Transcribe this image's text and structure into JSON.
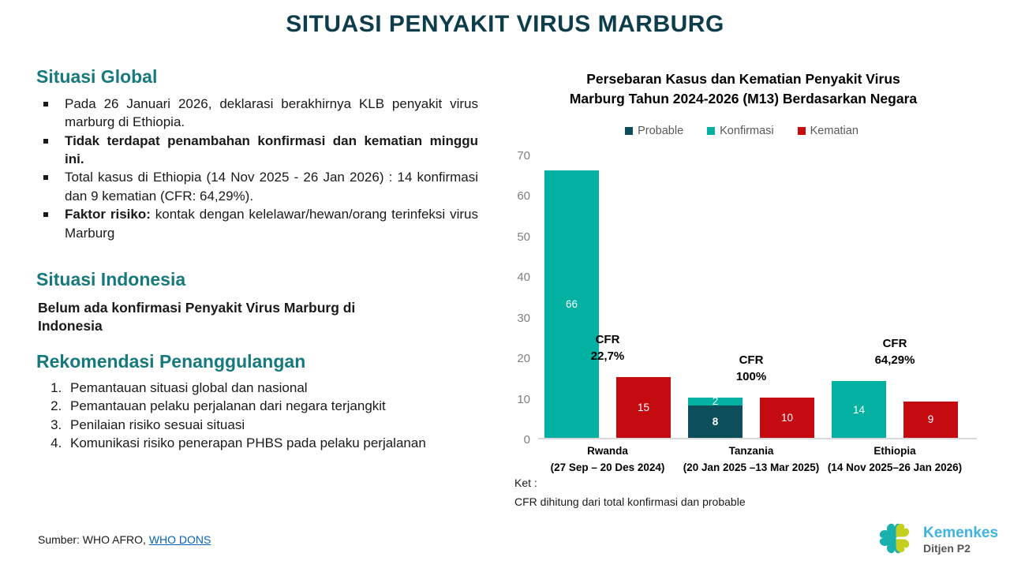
{
  "title": "SITUASI PENYAKIT VIRUS MARBURG",
  "global_section": {
    "heading": "Situasi Global",
    "bullets": [
      {
        "bold": "",
        "text": "Pada 26 Januari 2026, deklarasi berakhirnya KLB penyakit virus marburg di Ethiopia."
      },
      {
        "bold": "Tidak terdapat penambahan konfirmasi dan kematian minggu ini.",
        "text": ""
      },
      {
        "bold": "",
        "text": "Total kasus di Ethiopia (14 Nov 2025 - 26 Jan 2026) : 14 konfirmasi dan 9 kematian (CFR: 64,29%)."
      },
      {
        "bold": "Faktor risiko:",
        "text": " kontak dengan kelelawar/hewan/orang terinfeksi virus Marburg"
      }
    ]
  },
  "indonesia_section": {
    "heading": "Situasi Indonesia",
    "text": "Belum ada konfirmasi Penyakit Virus Marburg di Indonesia"
  },
  "recommendation_section": {
    "heading": "Rekomendasi Penanggulangan",
    "items": [
      "Pemantauan situasi global dan nasional",
      "Pemantauan pelaku perjalanan dari negara terjangkit",
      "Penilaian risiko sesuai situasi",
      "Komunikasi risiko penerapan PHBS pada pelaku perjalanan"
    ]
  },
  "chart_data": {
    "type": "bar",
    "title": "Persebaran Kasus dan Kematian Penyakit Virus Marburg Tahun 2024-2026 (M13) Berdasarkan Negara",
    "legend_position": "top",
    "grid": false,
    "ylim": [
      0,
      70
    ],
    "yticks": [
      0,
      10,
      20,
      30,
      40,
      50,
      60,
      70
    ],
    "series_colors": {
      "Probable": "#0d4e5b",
      "Konfirmasi": "#02b1a2",
      "Kematian": "#c40b10"
    },
    "legend": [
      {
        "label": "Probable",
        "color": "#0d4e5b"
      },
      {
        "label": "Konfirmasi",
        "color": "#02b1a2"
      },
      {
        "label": "Kematian",
        "color": "#c40b10"
      }
    ],
    "groups": [
      {
        "country": "Rwanda",
        "period": "(27 Sep – 20 Des 2024)",
        "cases": {
          "probable": 0,
          "konfirmasi": 66
        },
        "kematian": 15,
        "cfr": [
          "CFR",
          "22,7%"
        ]
      },
      {
        "country": "Tanzania",
        "period": "(20 Jan 2025 –13 Mar 2025)",
        "cases": {
          "probable": 8,
          "konfirmasi": 2
        },
        "kematian": 10,
        "cfr": [
          "CFR",
          "100%"
        ]
      },
      {
        "country": "Ethiopia",
        "period": "(14 Nov 2025–26 Jan 2026)",
        "cases": {
          "probable": 0,
          "konfirmasi": 14
        },
        "kematian": 9,
        "cfr": [
          "CFR",
          "64,29%"
        ]
      }
    ],
    "note_label": "Ket :",
    "note": "CFR dihitung dari total konfirmasi dan probable"
  },
  "footer": {
    "source_prefix": "Sumber: WHO AFRO, ",
    "source_link": "WHO DONS"
  },
  "logo": {
    "name": "Kemenkes",
    "subtitle": "Ditjen P2",
    "name_color": "#3db3e3",
    "subtitle_color": "#55565a",
    "mark_teal": "#1ab0ad",
    "mark_lime": "#c3d021"
  },
  "colors": {
    "title": "#0d3c4a",
    "section_heading": "#15797d",
    "axis_ticks": "#7f7f7f",
    "legend_text": "#595959",
    "link": "#0563c1",
    "baseline": "#d9d9d9"
  }
}
